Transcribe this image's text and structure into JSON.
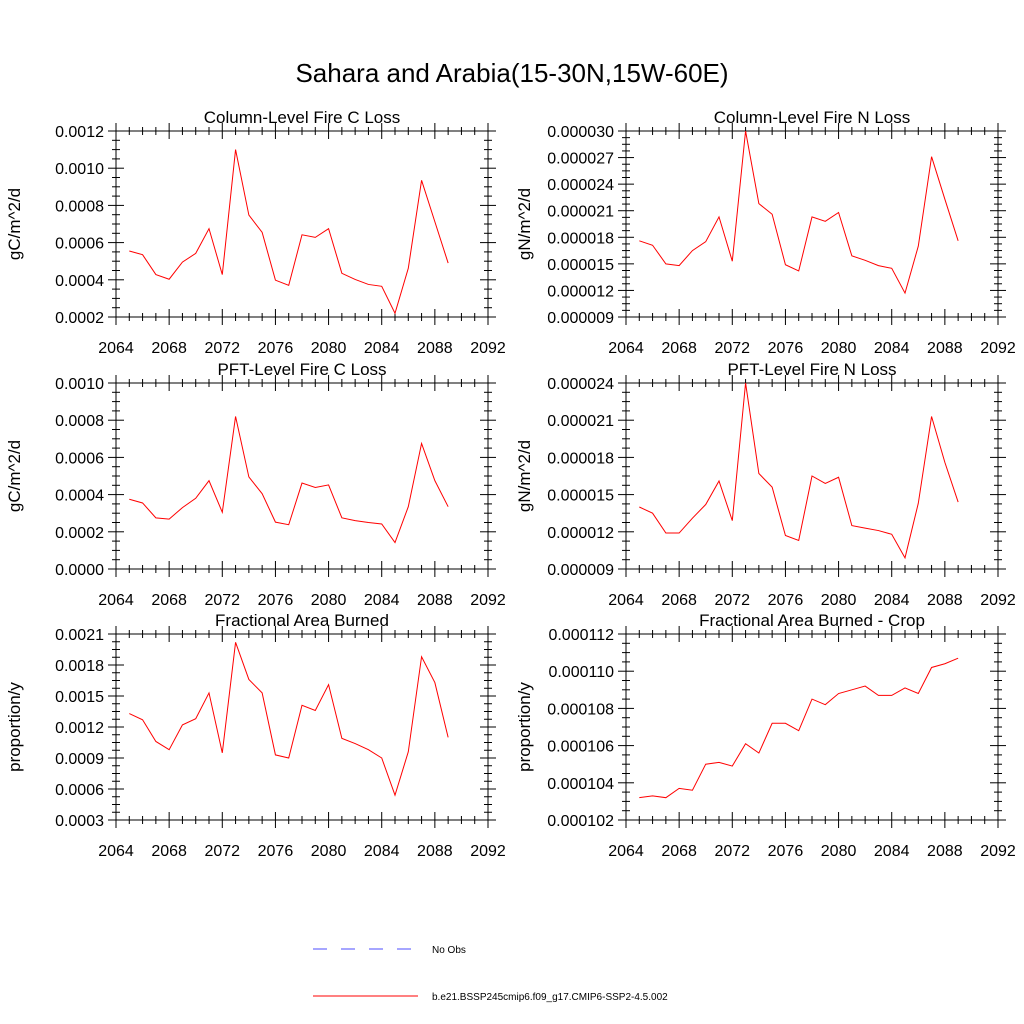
{
  "title": "Sahara and Arabia(15-30N,15W-60E)",
  "colors": {
    "model": "#ff0000",
    "obs": "#4d4dff",
    "axis": "#000000"
  },
  "legend": [
    {
      "label": "No Obs",
      "style": "dashed",
      "color": "#4d4dff"
    },
    {
      "label": "b.e21.BSSP245cmip6.f09_g17.CMIP6-SSP2-4.5.002",
      "style": "solid",
      "color": "#ff0000"
    }
  ],
  "chart_data": [
    {
      "type": "line",
      "title": "Column-Level Fire C Loss",
      "ylabel": "gC/m^2/d",
      "xlim": [
        2064,
        2092
      ],
      "ylim": [
        0.0002,
        0.0012
      ],
      "xticks": [
        2064,
        2068,
        2072,
        2076,
        2080,
        2084,
        2088,
        2092
      ],
      "xtick_labels": [
        "2064",
        "2068",
        "2072",
        "2076",
        "2080",
        "2084",
        "2088",
        "2092"
      ],
      "yticks": [
        0.0002,
        0.0004,
        0.0006,
        0.0008,
        0.001,
        0.0012
      ],
      "ytick_labels": [
        "0.0002",
        "0.0004",
        "0.0006",
        "0.0008",
        "0.0010",
        "0.0012"
      ],
      "x": [
        2065,
        2066,
        2067,
        2068,
        2069,
        2070,
        2071,
        2072,
        2073,
        2074,
        2075,
        2076,
        2077,
        2078,
        2079,
        2080,
        2081,
        2082,
        2083,
        2084,
        2085,
        2086,
        2087,
        2088,
        2089
      ],
      "series": [
        {
          "values": [
            0.000555,
            0.000535,
            0.000428,
            0.000403,
            0.000495,
            0.000542,
            0.000675,
            0.000428,
            0.0011,
            0.000748,
            0.000655,
            0.000398,
            0.00037,
            0.000642,
            0.000628,
            0.000675,
            0.000435,
            0.000402,
            0.000375,
            0.000365,
            0.00022,
            0.000462,
            0.000935,
            0.000712,
            0.00049
          ]
        }
      ]
    },
    {
      "type": "line",
      "title": "Column-Level Fire N Loss",
      "ylabel": "gN/m^2/d",
      "xlim": [
        2064,
        2092
      ],
      "ylim": [
        9e-06,
        3e-05
      ],
      "xticks": [
        2064,
        2068,
        2072,
        2076,
        2080,
        2084,
        2088,
        2092
      ],
      "xtick_labels": [
        "2064",
        "2068",
        "2072",
        "2076",
        "2080",
        "2084",
        "2088",
        "2092"
      ],
      "yticks": [
        9e-06,
        1.2e-05,
        1.5e-05,
        1.8e-05,
        2.1e-05,
        2.4e-05,
        2.7e-05,
        3e-05
      ],
      "ytick_labels": [
        "0.000009",
        "0.000012",
        "0.000015",
        "0.000018",
        "0.000021",
        "0.000024",
        "0.000027",
        "0.000030"
      ],
      "x": [
        2065,
        2066,
        2067,
        2068,
        2069,
        2070,
        2071,
        2072,
        2073,
        2074,
        2075,
        2076,
        2077,
        2078,
        2079,
        2080,
        2081,
        2082,
        2083,
        2084,
        2085,
        2086,
        2087,
        2088,
        2089
      ],
      "series": [
        {
          "values": [
            1.76e-05,
            1.71e-05,
            1.5e-05,
            1.48e-05,
            1.65e-05,
            1.75e-05,
            2.03e-05,
            1.53e-05,
            3e-05,
            2.18e-05,
            2.06e-05,
            1.49e-05,
            1.42e-05,
            2.03e-05,
            1.98e-05,
            2.08e-05,
            1.59e-05,
            1.54e-05,
            1.48e-05,
            1.45e-05,
            1.17e-05,
            1.7e-05,
            2.71e-05,
            2.23e-05,
            1.76e-05
          ]
        }
      ]
    },
    {
      "type": "line",
      "title": "PFT-Level Fire C Loss",
      "ylabel": "gC/m^2/d",
      "xlim": [
        2064,
        2092
      ],
      "ylim": [
        0,
        0.001
      ],
      "xticks": [
        2064,
        2068,
        2072,
        2076,
        2080,
        2084,
        2088,
        2092
      ],
      "xtick_labels": [
        "2064",
        "2068",
        "2072",
        "2076",
        "2080",
        "2084",
        "2088",
        "2092"
      ],
      "yticks": [
        0,
        0.0002,
        0.0004,
        0.0006,
        0.0008,
        0.001
      ],
      "ytick_labels": [
        "0.0000",
        "0.0002",
        "0.0004",
        "0.0006",
        "0.0008",
        "0.0010"
      ],
      "x": [
        2065,
        2066,
        2067,
        2068,
        2069,
        2070,
        2071,
        2072,
        2073,
        2074,
        2075,
        2076,
        2077,
        2078,
        2079,
        2080,
        2081,
        2082,
        2083,
        2084,
        2085,
        2086,
        2087,
        2088,
        2089
      ],
      "series": [
        {
          "values": [
            0.000375,
            0.000355,
            0.000275,
            0.000268,
            0.00033,
            0.00038,
            0.000475,
            0.000305,
            0.00082,
            0.000495,
            0.000405,
            0.000252,
            0.000238,
            0.000462,
            0.000438,
            0.000452,
            0.000275,
            0.00026,
            0.00025,
            0.000242,
            0.000142,
            0.000335,
            0.000675,
            0.000475,
            0.000335
          ]
        }
      ]
    },
    {
      "type": "line",
      "title": "PFT-Level Fire N Loss",
      "ylabel": "gN/m^2/d",
      "xlim": [
        2064,
        2092
      ],
      "ylim": [
        9e-06,
        2.4e-05
      ],
      "xticks": [
        2064,
        2068,
        2072,
        2076,
        2080,
        2084,
        2088,
        2092
      ],
      "xtick_labels": [
        "2064",
        "2068",
        "2072",
        "2076",
        "2080",
        "2084",
        "2088",
        "2092"
      ],
      "yticks": [
        9e-06,
        1.2e-05,
        1.5e-05,
        1.8e-05,
        2.1e-05,
        2.4e-05
      ],
      "ytick_labels": [
        "0.000009",
        "0.000012",
        "0.000015",
        "0.000018",
        "0.000021",
        "0.000024"
      ],
      "x": [
        2065,
        2066,
        2067,
        2068,
        2069,
        2070,
        2071,
        2072,
        2073,
        2074,
        2075,
        2076,
        2077,
        2078,
        2079,
        2080,
        2081,
        2082,
        2083,
        2084,
        2085,
        2086,
        2087,
        2088,
        2089
      ],
      "series": [
        {
          "values": [
            1.4e-05,
            1.35e-05,
            1.19e-05,
            1.19e-05,
            1.31e-05,
            1.42e-05,
            1.61e-05,
            1.29e-05,
            2.4e-05,
            1.67e-05,
            1.56e-05,
            1.17e-05,
            1.13e-05,
            1.65e-05,
            1.59e-05,
            1.64e-05,
            1.25e-05,
            1.23e-05,
            1.21e-05,
            1.18e-05,
            9.9e-06,
            1.43e-05,
            2.13e-05,
            1.76e-05,
            1.44e-05
          ]
        }
      ]
    },
    {
      "type": "line",
      "title": "Fractional Area Burned",
      "ylabel": "proportion/y",
      "xlim": [
        2064,
        2092
      ],
      "ylim": [
        0.0003,
        0.0021
      ],
      "xticks": [
        2064,
        2068,
        2072,
        2076,
        2080,
        2084,
        2088,
        2092
      ],
      "xtick_labels": [
        "2064",
        "2068",
        "2072",
        "2076",
        "2080",
        "2084",
        "2088",
        "2092"
      ],
      "yticks": [
        0.0003,
        0.0006,
        0.0009,
        0.0012,
        0.0015,
        0.0018,
        0.0021
      ],
      "ytick_labels": [
        "0.0003",
        "0.0006",
        "0.0009",
        "0.0012",
        "0.0015",
        "0.0018",
        "0.0021"
      ],
      "x": [
        2065,
        2066,
        2067,
        2068,
        2069,
        2070,
        2071,
        2072,
        2073,
        2074,
        2075,
        2076,
        2077,
        2078,
        2079,
        2080,
        2081,
        2082,
        2083,
        2084,
        2085,
        2086,
        2087,
        2088,
        2089
      ],
      "series": [
        {
          "values": [
            0.00133,
            0.00127,
            0.00106,
            0.00098,
            0.00122,
            0.00128,
            0.00153,
            0.00095,
            0.00202,
            0.00166,
            0.00153,
            0.00093,
            0.0009,
            0.00141,
            0.00136,
            0.00161,
            0.00109,
            0.00104,
            0.00098,
            0.0009,
            0.00054,
            0.00096,
            0.00188,
            0.00163,
            0.0011
          ]
        }
      ]
    },
    {
      "type": "line",
      "title": "Fractional Area Burned - Crop",
      "ylabel": "proportion/y",
      "xlim": [
        2064,
        2092
      ],
      "ylim": [
        0.000102,
        0.000112
      ],
      "xticks": [
        2064,
        2068,
        2072,
        2076,
        2080,
        2084,
        2088,
        2092
      ],
      "xtick_labels": [
        "2064",
        "2068",
        "2072",
        "2076",
        "2080",
        "2084",
        "2088",
        "2092"
      ],
      "yticks": [
        0.000102,
        0.000104,
        0.000106,
        0.000108,
        0.00011,
        0.000112
      ],
      "ytick_labels": [
        "0.000102",
        "0.000104",
        "0.000106",
        "0.000108",
        "0.000110",
        "0.000112"
      ],
      "x": [
        2065,
        2066,
        2067,
        2068,
        2069,
        2070,
        2071,
        2072,
        2073,
        2074,
        2075,
        2076,
        2077,
        2078,
        2079,
        2080,
        2081,
        2082,
        2083,
        2084,
        2085,
        2086,
        2087,
        2088,
        2089
      ],
      "series": [
        {
          "values": [
            0.0001032,
            0.0001033,
            0.0001032,
            0.0001037,
            0.0001036,
            0.000105,
            0.0001051,
            0.0001049,
            0.0001061,
            0.0001056,
            0.0001072,
            0.0001072,
            0.0001068,
            0.0001085,
            0.0001082,
            0.0001088,
            0.000109,
            0.0001092,
            0.0001087,
            0.0001087,
            0.0001091,
            0.0001088,
            0.0001102,
            0.0001104,
            0.0001107
          ]
        }
      ]
    }
  ]
}
